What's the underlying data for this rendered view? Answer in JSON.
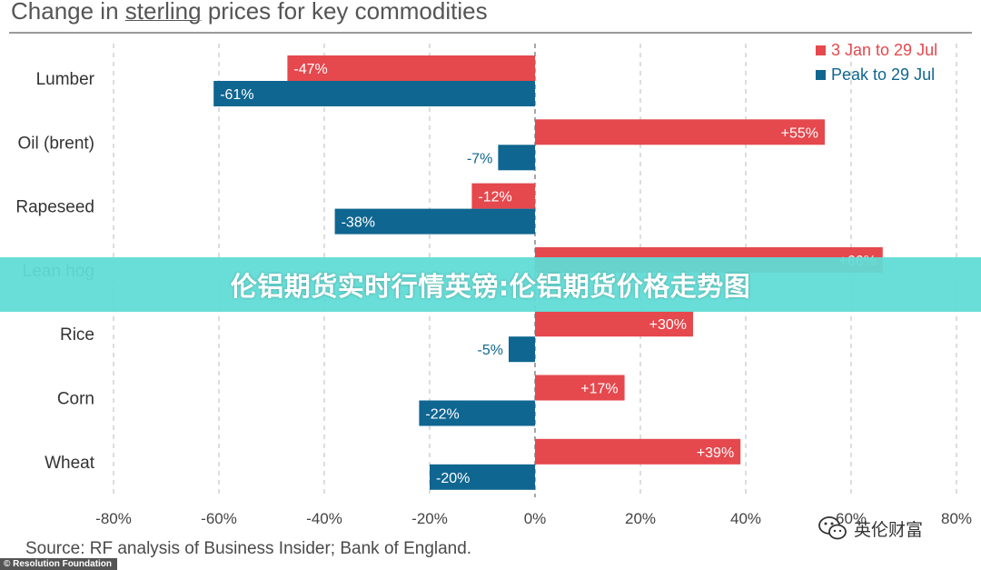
{
  "title": {
    "prefix": "Change in ",
    "underlined": "sterling",
    "suffix": " prices for key commodities"
  },
  "banner_text": "伦铝期货实时行情英镑:伦铝期货价格走势图",
  "source_text": "Source: RF analysis of Business Insider; Bank of England.",
  "credit_text": "© Resolution Foundation",
  "watermark": {
    "text": "英伦财富",
    "icon": "wechat-icon"
  },
  "colors": {
    "series1": "#e5484d",
    "series2": "#0f6690",
    "grid": "#bbbbbb",
    "text": "#333333"
  },
  "chart_data": {
    "type": "bar",
    "orientation": "horizontal",
    "title": "Change in sterling prices for key commodities",
    "categories": [
      "Lumber",
      "Oil (brent)",
      "Rapeseed",
      "Lean hog",
      "Rice",
      "Corn",
      "Wheat"
    ],
    "series": [
      {
        "name": "3 Jan to 29 Jul",
        "color": "#e5484d",
        "values": [
          -47,
          55,
          -12,
          66,
          30,
          17,
          39
        ]
      },
      {
        "name": "Peak to 29 Jul",
        "color": "#0f6690",
        "values": [
          -61,
          -7,
          -38,
          null,
          -5,
          -22,
          -20
        ]
      }
    ],
    "xlim": [
      -80,
      80
    ],
    "xticks": [
      -80,
      -60,
      -40,
      -20,
      0,
      20,
      40,
      60,
      80
    ],
    "xtick_labels": [
      "-80%",
      "-60%",
      "-40%",
      "-20%",
      "0%",
      "20%",
      "40%",
      "60%",
      "80%"
    ],
    "grid": "vertical dashed",
    "legend": "top-right"
  }
}
